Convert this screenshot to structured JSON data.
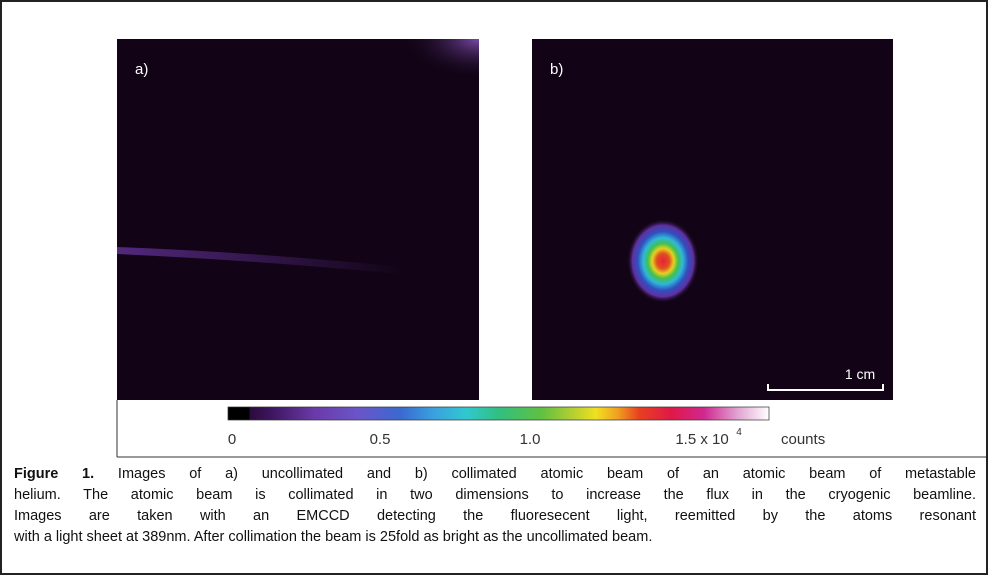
{
  "figure": {
    "panels": [
      {
        "label": "a)"
      },
      {
        "label": "b)"
      }
    ],
    "scale_bar": "1 cm",
    "colorbar": {
      "ticks": [
        "0",
        "0.5",
        "1.0"
      ],
      "last_tick": {
        "base": "1.5 x 10",
        "exponent": "4"
      },
      "unit": "counts"
    },
    "caption": {
      "label": "Figure 1.",
      "lines": [
        " Images of a) uncollimated and b) collimated atomic beam of an atomic beam of metastable",
        "helium. The atomic beam is collimated in two dimensions to increase the flux in the cryogenic beamline.",
        "Images are taken with an EMCCD detecting the fluoresecent light, reemitted by the atoms resonant",
        "with a light sheet at 389nm. After collimation the beam is 25fold as bright as the uncollimated beam."
      ]
    }
  }
}
